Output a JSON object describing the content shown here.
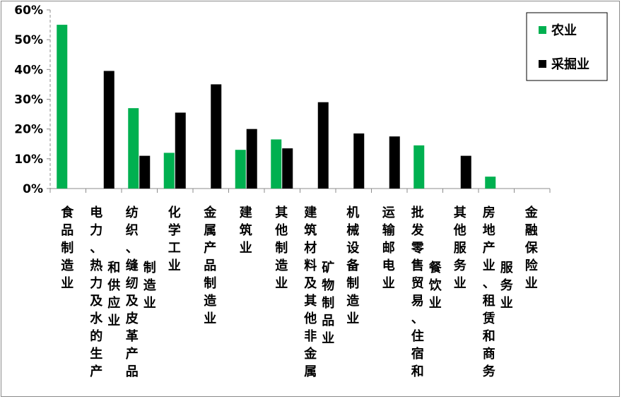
{
  "chart_data": {
    "type": "bar",
    "ylim": [
      0,
      60
    ],
    "yticks": [
      "0%",
      "10%",
      "20%",
      "30%",
      "40%",
      "50%",
      "60%"
    ],
    "legend_position": "top-right",
    "categories": [
      [
        "食品制造业"
      ],
      [
        "电力、热力及水的生产",
        "和供应业"
      ],
      [
        "纺织、缝纫及皮革产品",
        "制造业"
      ],
      [
        "化学工业"
      ],
      [
        "金属产品制造业"
      ],
      [
        "建筑业"
      ],
      [
        "其他制造业"
      ],
      [
        "建筑材料及其他非金属",
        "矿物制品业"
      ],
      [
        "机械设备制造业"
      ],
      [
        "运输邮电业"
      ],
      [
        "批发零售贸易、住宿和",
        "餐饮业"
      ],
      [
        "其他服务业"
      ],
      [
        "房地产业、租赁和商务",
        "服务业"
      ],
      [
        "金融保险业"
      ]
    ],
    "series": [
      {
        "name": "农业",
        "color": "#00b050",
        "values": [
          55,
          0,
          27,
          12,
          0,
          13,
          16.5,
          0,
          0,
          0,
          14.5,
          0,
          4,
          0
        ]
      },
      {
        "name": "采掘业",
        "color": "#000000",
        "values": [
          0,
          39.5,
          11,
          25.5,
          35,
          20,
          13.5,
          29,
          18.5,
          17.5,
          0,
          11,
          0,
          0
        ]
      }
    ]
  }
}
